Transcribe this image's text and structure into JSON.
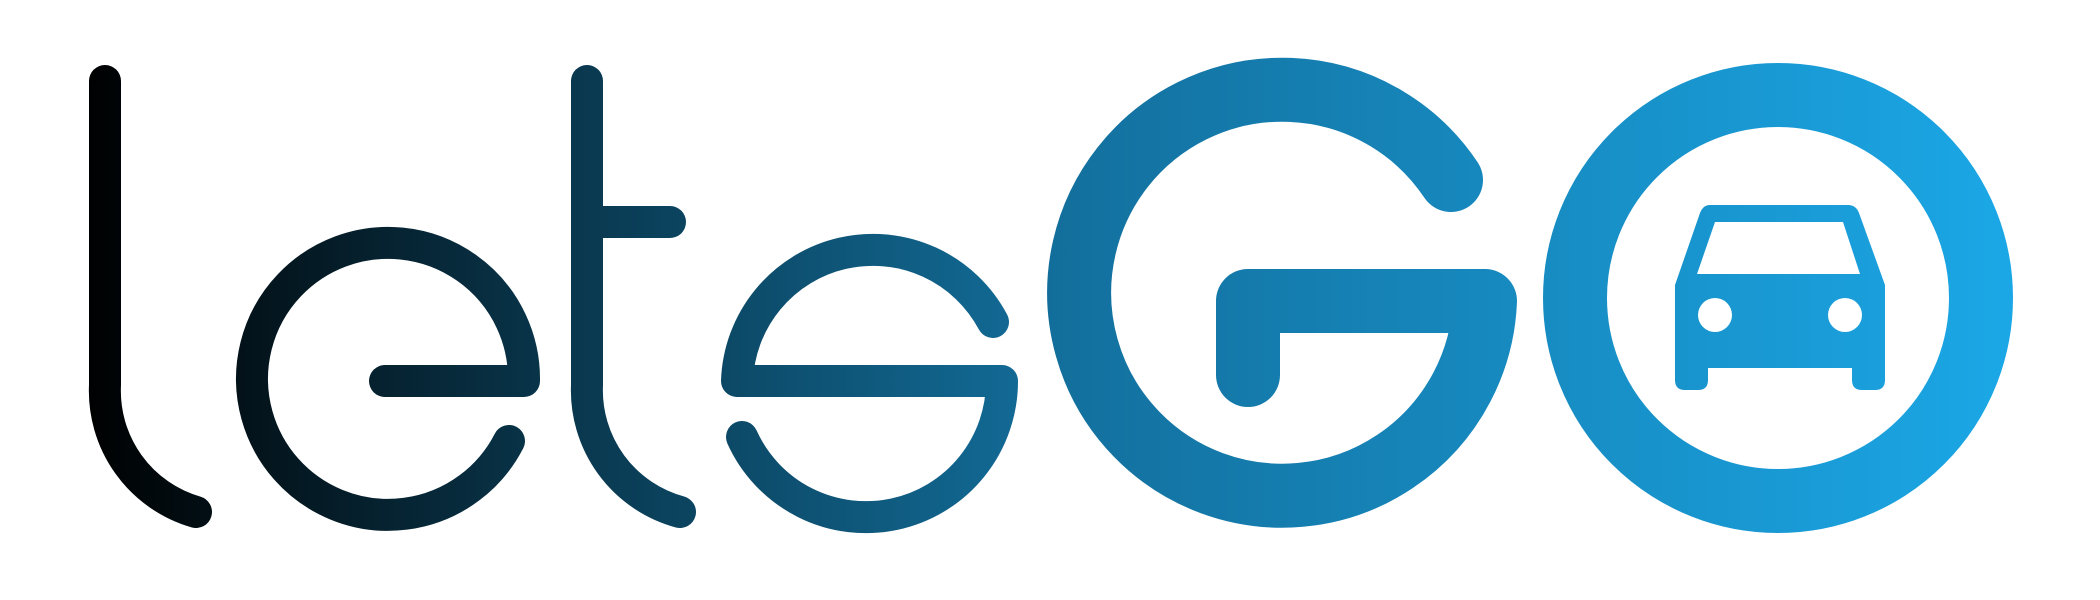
{
  "logo": {
    "wordmark": "letsGO",
    "icon": "car-icon",
    "colors": {
      "gradient_start": "#000000",
      "gradient_mid": "#13719F",
      "gradient_end": "#1BA7E6",
      "background": "#FFFFFF"
    }
  }
}
